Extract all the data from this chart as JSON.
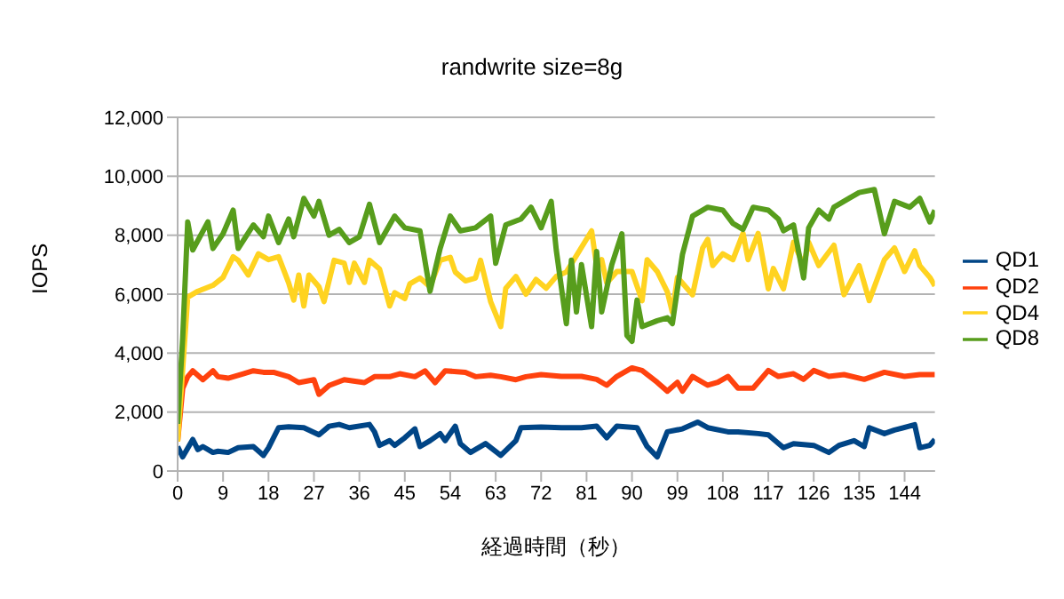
{
  "chart_data": {
    "type": "line",
    "title": "randwrite size=8g",
    "xlabel": "経過時間（秒）",
    "ylabel": "IOPS",
    "xlim": [
      0,
      150
    ],
    "xticks": [
      0,
      9,
      18,
      27,
      36,
      45,
      54,
      63,
      72,
      81,
      90,
      99,
      108,
      117,
      126,
      135,
      144
    ],
    "ylim": [
      0,
      12000
    ],
    "yticks": [
      {
        "value": 0,
        "label": "0"
      },
      {
        "value": 2000,
        "label": "2,000"
      },
      {
        "value": 4000,
        "label": "4,000"
      },
      {
        "value": 6000,
        "label": "6,000"
      },
      {
        "value": 8000,
        "label": "8,000"
      },
      {
        "value": 10000,
        "label": "10,000"
      },
      {
        "value": 12000,
        "label": "12,000"
      }
    ],
    "grid": "y",
    "legend": "right",
    "marker": "none",
    "line_style": "solid",
    "series": [
      {
        "name": "QD1",
        "color": "#004586",
        "x": [
          0,
          1,
          3,
          4,
          5,
          7,
          8,
          10,
          12,
          15,
          17,
          18,
          20,
          22,
          25,
          28,
          30,
          32,
          34,
          38,
          39,
          40,
          42,
          43,
          45,
          47,
          48,
          50,
          52,
          53,
          55,
          56,
          58,
          61,
          64,
          67,
          68,
          72,
          76,
          80,
          83,
          85,
          87,
          91,
          93,
          95,
          97,
          100,
          103,
          105,
          109,
          111,
          115,
          117,
          120,
          122,
          126,
          129,
          131,
          134,
          136,
          137,
          140,
          142,
          146,
          147,
          149,
          150
        ],
        "values": [
          830,
          480,
          1070,
          730,
          830,
          630,
          670,
          630,
          790,
          830,
          530,
          790,
          1470,
          1500,
          1470,
          1230,
          1520,
          1580,
          1470,
          1580,
          1330,
          870,
          1030,
          870,
          1130,
          1430,
          830,
          1030,
          1270,
          1030,
          1520,
          930,
          630,
          930,
          530,
          1030,
          1470,
          1490,
          1470,
          1470,
          1520,
          1130,
          1520,
          1470,
          830,
          480,
          1330,
          1430,
          1660,
          1470,
          1330,
          1330,
          1270,
          1230,
          790,
          930,
          870,
          630,
          870,
          1030,
          830,
          1470,
          1270,
          1390,
          1570,
          790,
          870,
          1070
        ]
      },
      {
        "name": "QD2",
        "color": "#ff420e",
        "x": [
          0,
          1,
          2,
          3,
          5,
          7,
          8,
          10,
          13,
          15,
          17,
          19,
          22,
          24,
          27,
          28,
          30,
          33,
          37,
          39,
          42,
          44,
          47,
          49,
          51,
          53,
          57,
          59,
          62,
          64,
          67,
          69,
          72,
          76,
          80,
          83,
          85,
          87,
          90,
          92,
          95,
          97,
          99,
          100,
          102,
          105,
          107,
          109,
          111,
          114,
          117,
          119,
          122,
          124,
          126,
          129,
          132,
          136,
          140,
          144,
          147,
          150
        ],
        "values": [
          1000,
          2800,
          3200,
          3400,
          3100,
          3400,
          3200,
          3150,
          3300,
          3400,
          3350,
          3350,
          3200,
          3000,
          3100,
          2600,
          2900,
          3100,
          3000,
          3200,
          3200,
          3300,
          3200,
          3400,
          3000,
          3400,
          3350,
          3200,
          3250,
          3200,
          3100,
          3200,
          3270,
          3210,
          3210,
          3110,
          2910,
          3210,
          3500,
          3410,
          3010,
          2710,
          3010,
          2710,
          3210,
          2910,
          3010,
          3210,
          2810,
          2810,
          3410,
          3210,
          3300,
          3110,
          3410,
          3210,
          3270,
          3110,
          3350,
          3210,
          3270,
          3270
        ]
      },
      {
        "name": "QD4",
        "color": "#ffd320",
        "x": [
          0,
          2,
          4,
          7,
          9,
          11,
          12,
          14,
          16,
          18,
          20,
          22,
          23,
          24,
          25,
          26,
          28,
          29,
          31,
          33,
          34,
          35,
          37,
          38,
          40,
          42,
          43,
          45,
          46,
          48,
          50,
          52,
          54,
          55,
          57,
          59,
          60,
          62,
          64,
          65,
          67,
          69,
          71,
          73,
          75,
          77,
          82,
          83,
          84,
          85,
          87,
          90,
          92,
          93,
          95,
          97,
          98,
          99,
          102,
          104,
          105,
          106,
          108,
          110,
          112,
          113,
          115,
          117,
          118,
          120,
          122,
          124,
          125,
          127,
          130,
          132,
          135,
          137,
          140,
          142,
          144,
          146,
          147,
          149,
          150
        ],
        "values": [
          1000,
          5900,
          6100,
          6300,
          6570,
          7270,
          7150,
          6650,
          7370,
          7170,
          7270,
          6380,
          5800,
          6650,
          5600,
          6650,
          6250,
          5750,
          7150,
          7050,
          6400,
          7050,
          6400,
          7150,
          6850,
          5600,
          6050,
          5850,
          6350,
          6550,
          6250,
          7150,
          7250,
          6750,
          6450,
          6550,
          7150,
          5750,
          4900,
          6200,
          6600,
          6000,
          6500,
          6200,
          6600,
          6750,
          8150,
          6950,
          7170,
          6380,
          6770,
          6770,
          5780,
          7170,
          6770,
          6080,
          5390,
          6570,
          5980,
          7570,
          7860,
          6970,
          7370,
          7170,
          8060,
          7170,
          8060,
          6180,
          6870,
          6180,
          7760,
          6970,
          7760,
          6970,
          7660,
          5980,
          6970,
          5780,
          7170,
          7570,
          6770,
          7470,
          6970,
          6570,
          6280
        ]
      },
      {
        "name": "QD8",
        "color": "#579d1c",
        "x": [
          0,
          1,
          2,
          3,
          6,
          7,
          9,
          11,
          12,
          15,
          17,
          18,
          20,
          22,
          23,
          25,
          27,
          28,
          30,
          32,
          34,
          36,
          38,
          40,
          43,
          45,
          48,
          50,
          52,
          54,
          56,
          59,
          62,
          63,
          65,
          68,
          70,
          72,
          74,
          75,
          77,
          78,
          79,
          80,
          82,
          83,
          84,
          86,
          88,
          89,
          90,
          91,
          92,
          95,
          97,
          98,
          100,
          102,
          105,
          108,
          110,
          112,
          114,
          117,
          119,
          120,
          122,
          124,
          125,
          127,
          129,
          130,
          133,
          135,
          138,
          140,
          142,
          145,
          147,
          149,
          150
        ],
        "values": [
          1600,
          4500,
          8450,
          7500,
          8450,
          7550,
          8050,
          8850,
          7550,
          8350,
          7950,
          8650,
          7750,
          8550,
          7950,
          9250,
          8650,
          9150,
          8000,
          8200,
          7750,
          7950,
          9050,
          7750,
          8650,
          8250,
          8150,
          6100,
          7550,
          8650,
          8150,
          8250,
          8650,
          7050,
          8350,
          8550,
          8950,
          8250,
          9150,
          7500,
          5000,
          7150,
          5400,
          7000,
          4900,
          7450,
          5400,
          7000,
          8050,
          4600,
          4400,
          5800,
          4900,
          5100,
          5200,
          5000,
          7350,
          8650,
          8950,
          8850,
          8400,
          8200,
          8950,
          8850,
          8550,
          8150,
          8350,
          6550,
          8250,
          8850,
          8550,
          8950,
          9250,
          9450,
          9550,
          8050,
          9150,
          8950,
          9250,
          8450,
          8850
        ]
      }
    ]
  }
}
